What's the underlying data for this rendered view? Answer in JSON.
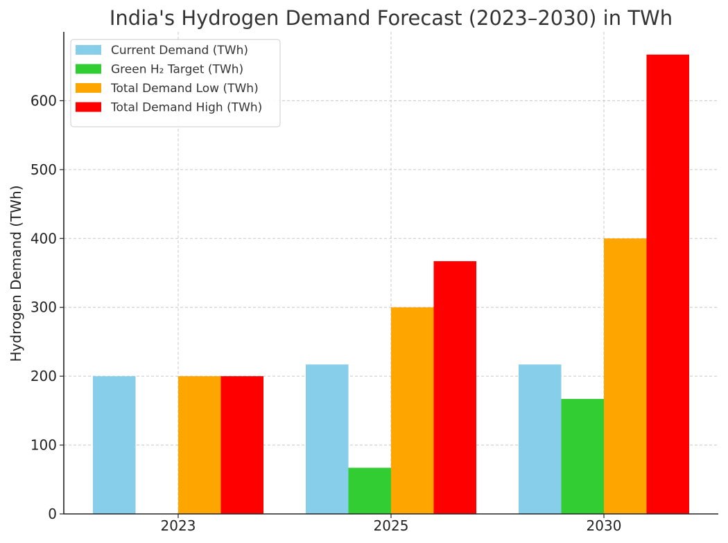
{
  "chart_data": {
    "type": "bar",
    "title": "India's Hydrogen Demand Forecast (2023–2030) in TWh",
    "xlabel": "",
    "ylabel": "Hydrogen Demand (TWh)",
    "categories": [
      "2023",
      "2025",
      "2030"
    ],
    "ylim": [
      0,
      700
    ],
    "yticks": [
      0,
      100,
      200,
      300,
      400,
      500,
      600
    ],
    "grid": true,
    "legend_position": "top-left",
    "series": [
      {
        "name": "Current Demand (TWh)",
        "color": "#87CEEB",
        "values": [
          200,
          217,
          217
        ]
      },
      {
        "name": "Green H₂ Target (TWh)",
        "color": "#32CD32",
        "values": [
          0,
          67,
          167
        ]
      },
      {
        "name": "Total Demand Low (TWh)",
        "color": "#FFA500",
        "values": [
          200,
          300,
          400
        ]
      },
      {
        "name": "Total Demand High (TWh)",
        "color": "#FF0000",
        "values": [
          200,
          367,
          667
        ]
      }
    ]
  }
}
